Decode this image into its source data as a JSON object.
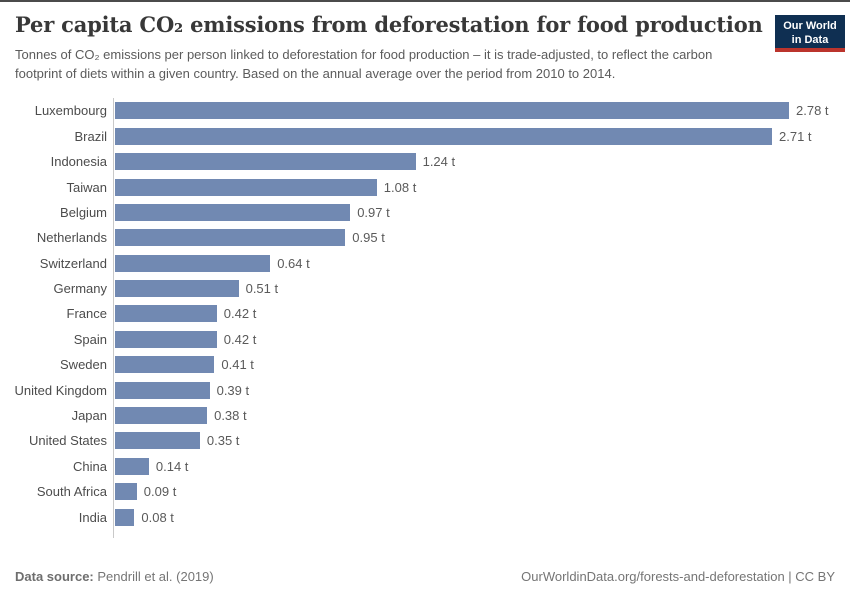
{
  "header": {
    "title": "Per capita CO₂ emissions from deforestation for food production",
    "subtitle": "Tonnes of CO₂ emissions per person linked to deforestation for food production – it is trade-adjusted, to reflect the carbon footprint of diets within a given country. Based on the annual average over the period from 2010 to 2014.",
    "logo": {
      "line1": "Our World",
      "line2": "in Data",
      "bg_color": "#0f2f52",
      "accent_color": "#bb342c"
    }
  },
  "chart_data": {
    "type": "bar",
    "orientation": "horizontal",
    "title": "Per capita CO₂ emissions from deforestation for food production",
    "unit": "t",
    "bar_color": "#7189b2",
    "axis_color": "#c9c9c9",
    "grid": false,
    "legend": "none",
    "xlim": [
      0,
      2.78
    ],
    "categories": [
      "Luxembourg",
      "Brazil",
      "Indonesia",
      "Taiwan",
      "Belgium",
      "Netherlands",
      "Switzerland",
      "Germany",
      "France",
      "Spain",
      "Sweden",
      "United Kingdom",
      "Japan",
      "United States",
      "China",
      "South Africa",
      "India"
    ],
    "values": [
      2.78,
      2.71,
      1.24,
      1.08,
      0.97,
      0.95,
      0.64,
      0.51,
      0.42,
      0.42,
      0.41,
      0.39,
      0.38,
      0.35,
      0.14,
      0.09,
      0.08
    ],
    "value_labels": [
      "2.78 t",
      "2.71 t",
      "1.24 t",
      "1.08 t",
      "0.97 t",
      "0.95 t",
      "0.64 t",
      "0.51 t",
      "0.42 t",
      "0.42 t",
      "0.41 t",
      "0.39 t",
      "0.38 t",
      "0.35 t",
      "0.14 t",
      "0.09 t",
      "0.08 t"
    ]
  },
  "footer": {
    "source_label": "Data source:",
    "source_value": "Pendrill et al. (2019)",
    "right_text": "OurWorldinData.org/forests-and-deforestation | CC BY"
  }
}
